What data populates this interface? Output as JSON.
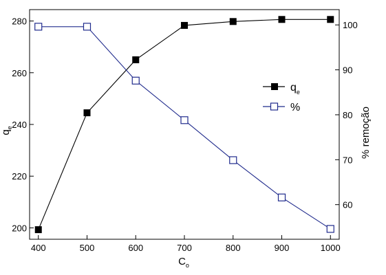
{
  "chart_data": {
    "type": "line",
    "title": "",
    "xlabel_base": "C",
    "xlabel_sub": "o",
    "ylabel_left_base": "q",
    "ylabel_left_sub": "e",
    "ylabel_right": "% remoção",
    "xlim": [
      382,
      1018
    ],
    "ylim_left": [
      195.6,
      284.4
    ],
    "ylim_right": [
      52.3,
      103.4
    ],
    "x_ticks": [
      400,
      500,
      600,
      700,
      800,
      900,
      1000
    ],
    "y_ticks_left": [
      200,
      220,
      240,
      260,
      280
    ],
    "y_ticks_right": [
      60,
      70,
      80,
      90,
      100
    ],
    "grid": false,
    "legend_position": "center-right",
    "series": [
      {
        "name_base": "q",
        "name_sub": "e",
        "axis": "left",
        "marker": "filled-square",
        "color": "#000000",
        "x": [
          400,
          500,
          600,
          700,
          800,
          900,
          1000
        ],
        "values": [
          199.3,
          244.5,
          265.0,
          278.3,
          279.8,
          280.6,
          280.6
        ]
      },
      {
        "name": "%",
        "axis": "right",
        "marker": "open-square",
        "color": "#1f2a8c",
        "x": [
          400,
          500,
          600,
          700,
          800,
          900,
          1000
        ],
        "values": [
          99.6,
          99.6,
          87.6,
          78.8,
          69.9,
          61.6,
          54.6
        ]
      }
    ]
  }
}
